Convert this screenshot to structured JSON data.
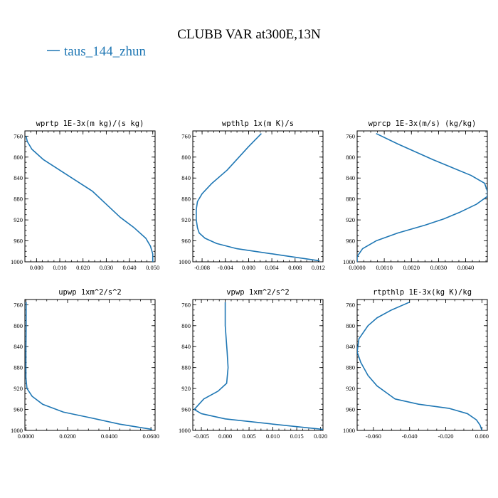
{
  "figure": {
    "title": "CLUBB VAR at300E,13N",
    "legend_entry": "taus_144_zhun",
    "line_color": "#1f77b4"
  },
  "chart_data": [
    {
      "type": "line",
      "title": "wprtp  1E-3x(m kg)/(s kg)",
      "xlim": [
        -0.005,
        0.051
      ],
      "ylim": [
        1000,
        750
      ],
      "xticks": [
        0.0,
        0.01,
        0.02,
        0.03,
        0.04,
        0.05
      ],
      "xtick_labels": [
        "0.000",
        "0.010",
        "0.020",
        "0.030",
        "0.040",
        "0.050"
      ],
      "yticks": [
        760,
        800,
        840,
        880,
        920,
        960,
        1000
      ],
      "ytick_labels": [
        "760",
        "800",
        "840",
        "880",
        "920",
        "960",
        "1000"
      ],
      "series": [
        {
          "name": "taus_144_zhun",
          "x": [
            -0.0045,
            -0.004,
            -0.002,
            0.003,
            0.01,
            0.017,
            0.024,
            0.03,
            0.036,
            0.042,
            0.047,
            0.049,
            0.05,
            0.05
          ],
          "y": [
            760,
            770,
            785,
            805,
            825,
            845,
            865,
            890,
            915,
            935,
            955,
            970,
            985,
            1000
          ]
        }
      ]
    },
    {
      "type": "line",
      "title": "wpthlp  1x(m K)/s",
      "xlim": [
        -0.0096,
        0.0128
      ],
      "ylim": [
        1000,
        750
      ],
      "xticks": [
        -0.008,
        -0.004,
        0.0,
        0.004,
        0.008,
        0.012
      ],
      "xtick_labels": [
        "-0.008",
        "-0.004",
        "0.000",
        "0.004",
        "0.008",
        "0.012"
      ],
      "yticks": [
        760,
        800,
        840,
        880,
        920,
        960,
        1000
      ],
      "ytick_labels": [
        "760",
        "800",
        "840",
        "880",
        "920",
        "960",
        "1000"
      ],
      "series": [
        {
          "name": "taus_144_zhun",
          "x": [
            0.0022,
            0.0,
            -0.0037,
            -0.0063,
            -0.008,
            -0.0088,
            -0.009,
            -0.009,
            -0.0088,
            -0.0085,
            -0.0075,
            -0.0055,
            -0.002,
            0.006,
            0.0122
          ],
          "y": [
            755,
            780,
            825,
            850,
            870,
            885,
            900,
            920,
            935,
            945,
            955,
            965,
            975,
            988,
            998
          ]
        }
      ]
    },
    {
      "type": "line",
      "title": "wprcp  1E-3x(m/s) (kg/kg)",
      "xlim": [
        0.0,
        0.0048
      ],
      "ylim": [
        1000,
        750
      ],
      "xticks": [
        0.0,
        0.001,
        0.002,
        0.003,
        0.004
      ],
      "xtick_labels": [
        "0.0000",
        "0.0010",
        "0.0020",
        "0.0030",
        "0.0040"
      ],
      "yticks": [
        760,
        800,
        840,
        880,
        920,
        960,
        1000
      ],
      "ytick_labels": [
        "760",
        "800",
        "840",
        "880",
        "920",
        "960",
        "1000"
      ],
      "series": [
        {
          "name": "taus_144_zhun",
          "x": [
            0.0007,
            0.0015,
            0.0028,
            0.0042,
            0.0047,
            0.0048,
            0.0048,
            0.0044,
            0.0038,
            0.0032,
            0.0025,
            0.0015,
            0.0007,
            0.0002,
            0.0,
            0.0
          ],
          "y": [
            755,
            775,
            805,
            835,
            850,
            865,
            875,
            890,
            905,
            918,
            930,
            945,
            960,
            975,
            990,
            1000
          ]
        }
      ]
    },
    {
      "type": "line",
      "title": "upwp  1xm^2/s^2",
      "xlim": [
        -0.0005,
        0.062
      ],
      "ylim": [
        1000,
        750
      ],
      "xticks": [
        0.0,
        0.02,
        0.04,
        0.06
      ],
      "xtick_labels": [
        "0.0000",
        "0.0200",
        "0.0400",
        "0.0600"
      ],
      "yticks": [
        760,
        800,
        840,
        880,
        920,
        960,
        1000
      ],
      "ytick_labels": [
        "760",
        "800",
        "840",
        "880",
        "920",
        "960",
        "1000"
      ],
      "series": [
        {
          "name": "taus_144_zhun",
          "x": [
            0.0001,
            0.0001,
            0.0,
            0.0,
            0.0005,
            0.003,
            0.008,
            0.018,
            0.03,
            0.045,
            0.0605
          ],
          "y": [
            755,
            800,
            850,
            900,
            920,
            935,
            950,
            965,
            975,
            988,
            998
          ]
        }
      ]
    },
    {
      "type": "line",
      "title": "vpwp  1xm^2/s^2",
      "xlim": [
        -0.0068,
        0.0205
      ],
      "ylim": [
        1000,
        750
      ],
      "xticks": [
        -0.005,
        0.0,
        0.005,
        0.01,
        0.015,
        0.02
      ],
      "xtick_labels": [
        "-0.005",
        "0.000",
        "0.005",
        "0.010",
        "0.015",
        "0.020"
      ],
      "yticks": [
        760,
        800,
        840,
        880,
        920,
        960,
        1000
      ],
      "ytick_labels": [
        "760",
        "800",
        "840",
        "880",
        "920",
        "960",
        "1000"
      ],
      "series": [
        {
          "name": "taus_144_zhun",
          "x": [
            0.0,
            0.0,
            0.0004,
            0.0006,
            0.0003,
            -0.0015,
            -0.0045,
            -0.0065,
            -0.005,
            0.0,
            0.01,
            0.0205
          ],
          "y": [
            755,
            800,
            850,
            880,
            910,
            925,
            940,
            960,
            968,
            978,
            988,
            998
          ]
        }
      ]
    },
    {
      "type": "line",
      "title": "rtpthlp  1E-3x(kg K)/kg",
      "xlim": [
        -0.069,
        0.003
      ],
      "ylim": [
        1000,
        750
      ],
      "xticks": [
        -0.06,
        -0.04,
        -0.02,
        0.0
      ],
      "xtick_labels": [
        "-0.060",
        "-0.040",
        "-0.020",
        "0.000"
      ],
      "yticks": [
        760,
        800,
        840,
        880,
        920,
        960,
        1000
      ],
      "ytick_labels": [
        "760",
        "800",
        "840",
        "880",
        "920",
        "960",
        "1000"
      ],
      "series": [
        {
          "name": "taus_144_zhun",
          "x": [
            -0.04,
            -0.05,
            -0.058,
            -0.063,
            -0.068,
            -0.069,
            -0.067,
            -0.063,
            -0.058,
            -0.052,
            -0.048,
            -0.035,
            -0.018,
            -0.008,
            -0.003,
            -0.001,
            0.0
          ],
          "y": [
            755,
            770,
            785,
            800,
            825,
            850,
            870,
            895,
            915,
            930,
            940,
            950,
            958,
            968,
            980,
            990,
            1000
          ]
        }
      ]
    }
  ]
}
